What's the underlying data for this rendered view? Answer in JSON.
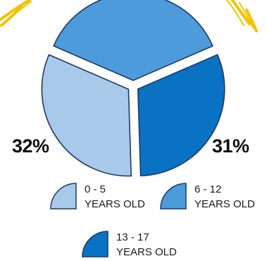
{
  "chart_data": {
    "type": "pie",
    "exploded": true,
    "slices": [
      {
        "label_line1": "0 - 5",
        "label_line2": "YEARS OLD",
        "value": 32,
        "value_label": "32%",
        "color": "#a9c9ea"
      },
      {
        "label_line1": "6 - 12",
        "label_line2": "YEARS OLD",
        "value": 37,
        "value_label": "",
        "color": "#4d9bdb"
      },
      {
        "label_line1": "13 - 17",
        "label_line2": "YEARS OLD",
        "value": 31,
        "value_label": "31%",
        "color": "#0a72c2"
      }
    ],
    "legend_position": "bottom",
    "outline_color": "#1c3a6b",
    "decoration_color": "#f2c300"
  }
}
